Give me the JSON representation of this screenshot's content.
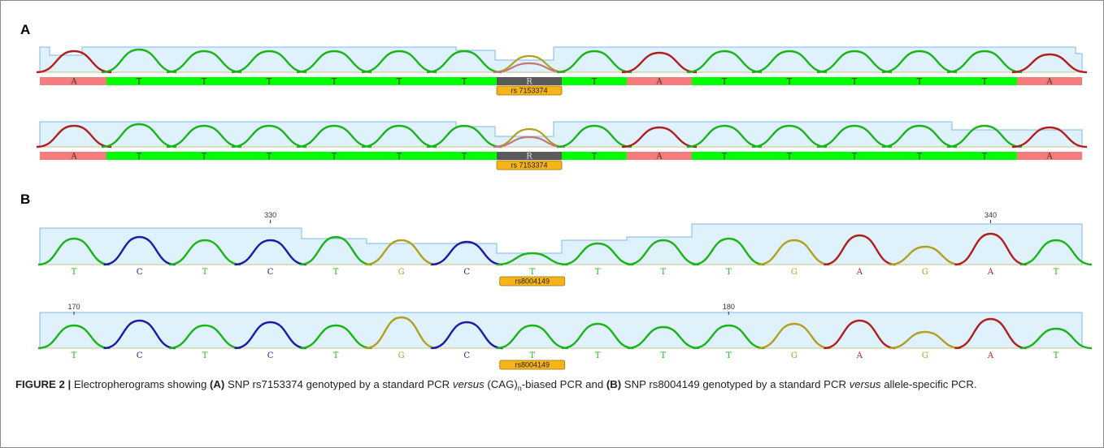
{
  "panel_a": {
    "label": "A",
    "bases": [
      "A",
      "T",
      "T",
      "T",
      "T",
      "T",
      "T",
      "R",
      "T",
      "A",
      "T",
      "T",
      "T",
      "T",
      "T",
      "A"
    ],
    "snp_id": "rs 7153374",
    "rows": 2
  },
  "panel_b": {
    "label": "B",
    "bases": [
      "T",
      "C",
      "T",
      "C",
      "T",
      "G",
      "C",
      "T",
      "T",
      "T",
      "T",
      "G",
      "A",
      "G",
      "A",
      "T"
    ],
    "snp_id": "rs8004149",
    "row1_ticks": [
      {
        "label": "330",
        "base_index": 3
      },
      {
        "label": "340",
        "base_index": 14
      }
    ],
    "row2_ticks": [
      {
        "label": "170",
        "base_index": 0
      },
      {
        "label": "180",
        "base_index": 10
      }
    ]
  },
  "colors": {
    "A": "#b01e1e",
    "T": "#18b418",
    "C": "#1a1aa8",
    "G": "#b0a020",
    "R": "#c07878",
    "bar_green": "#00ff00",
    "bar_red": "#f47c7c",
    "bar_grey": "#5a5a5a",
    "snp_label_fill": "#f6b419",
    "quality_fill": "#dff1fb",
    "quality_line": "#7fb8e8"
  },
  "caption": {
    "figure_label": "FIGURE 2 |",
    "p1": " Electropherograms showing ",
    "a_ref": "(A)",
    "p2": " SNP rs7153374 genotyped by a standard PCR ",
    "versus1": "versus",
    "p3": " (CAG)",
    "sub_n": "n",
    "p4": "-biased PCR and ",
    "b_ref": "(B)",
    "p5": " SNP rs8004149 genotyped by a standard PCR ",
    "versus2": "versus",
    "p6": " allele-specific PCR."
  }
}
